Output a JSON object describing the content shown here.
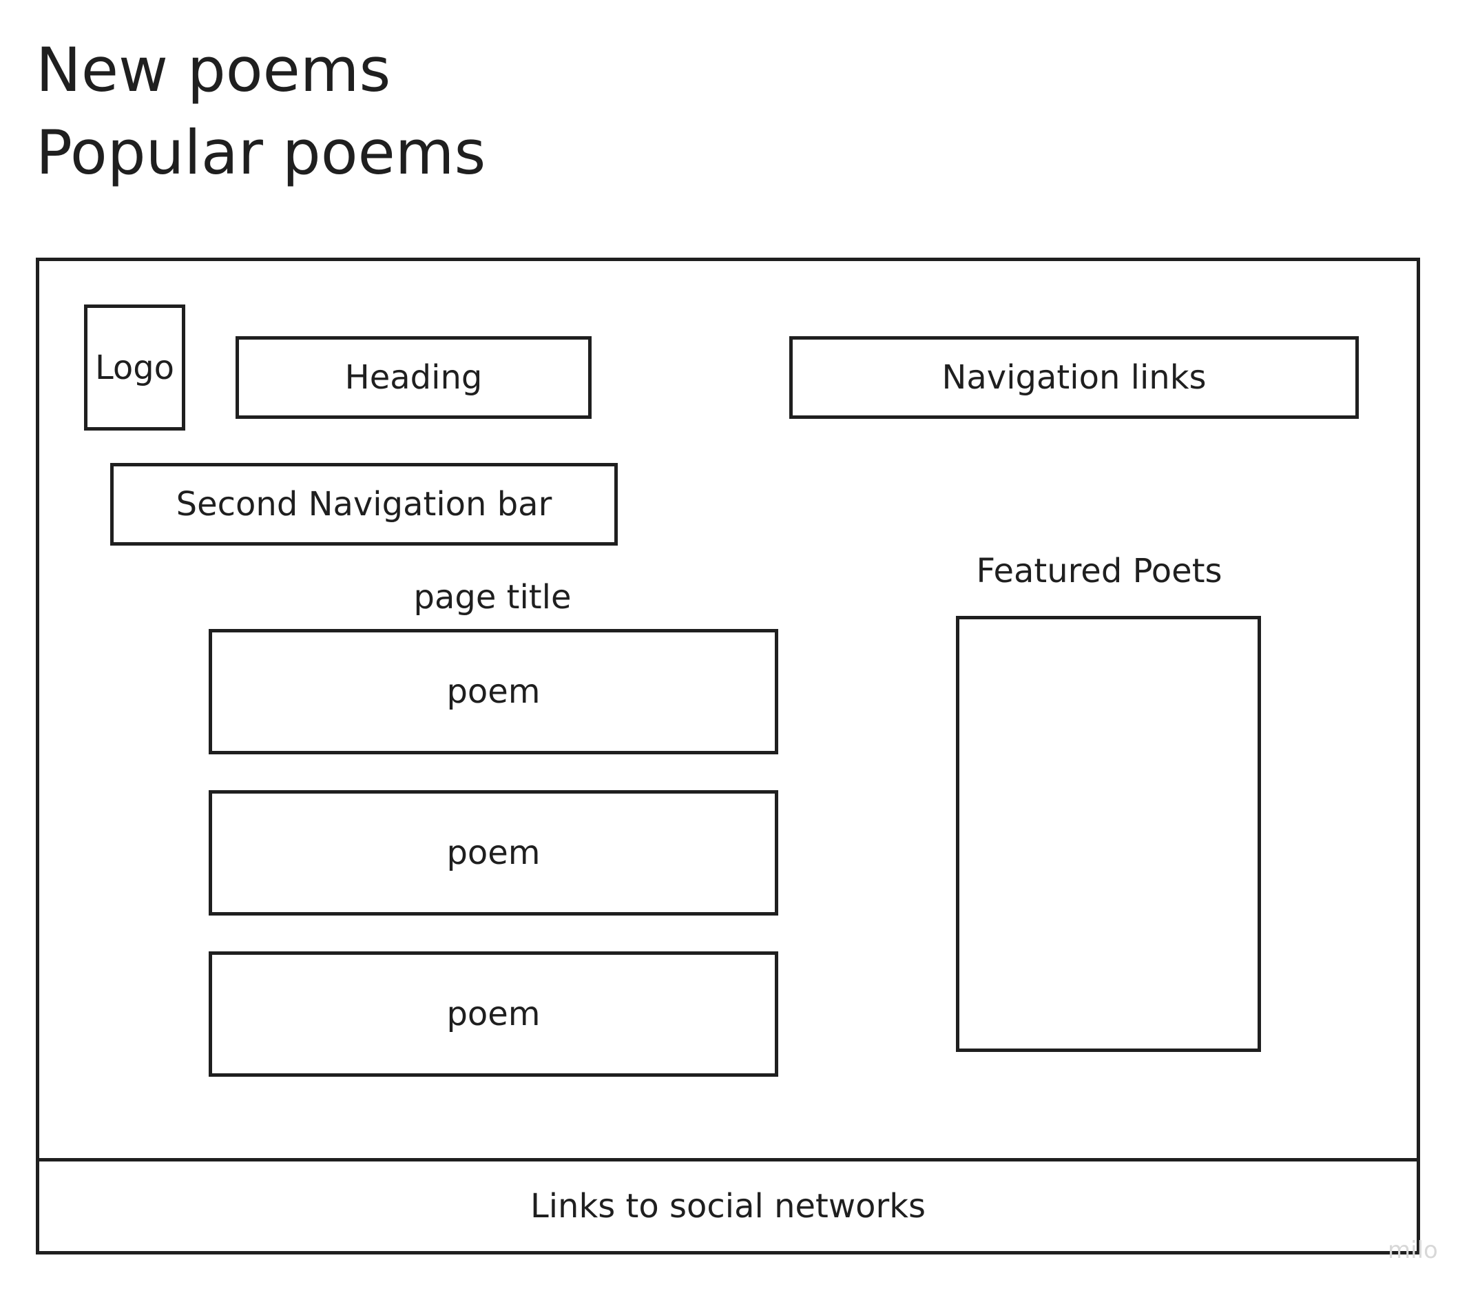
{
  "page_headings": {
    "new_poems": "New poems",
    "popular_poems": "Popular poems"
  },
  "wireframe": {
    "logo": "Logo",
    "heading": "Heading",
    "navigation_links": "Navigation links",
    "second_navigation_bar": "Second Navigation bar",
    "page_title": "page title",
    "poems": [
      "poem",
      "poem",
      "poem"
    ],
    "featured_poets": "Featured Poets",
    "footer": "Links to social networks"
  },
  "watermark": "milo",
  "colors": {
    "stroke": "#1f1f1f",
    "background": "#ffffff",
    "watermark": "#d8d8d8"
  }
}
